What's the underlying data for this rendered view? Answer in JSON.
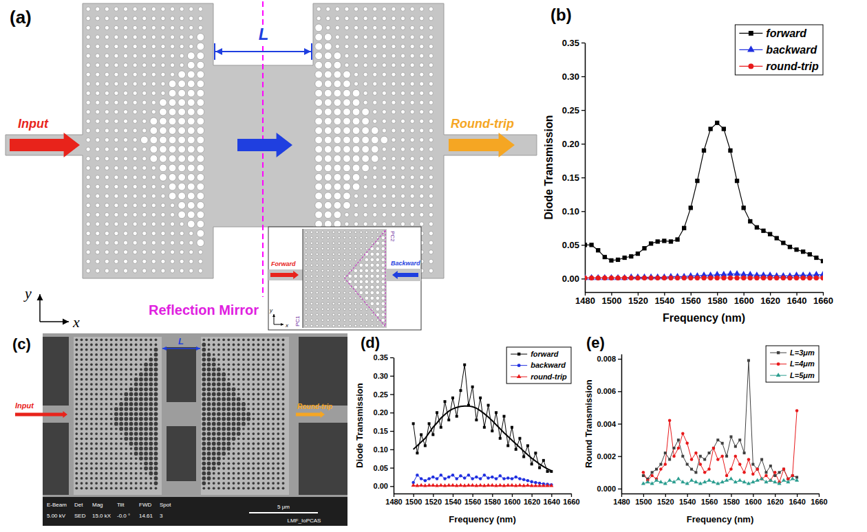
{
  "panel_a": {
    "label": "(a)",
    "L": "L",
    "input": "Input",
    "round_trip": "Round-trip",
    "mirror": "Reflection Mirror",
    "axis_y": "y",
    "axis_x": "x",
    "inset": {
      "forward": "Forward",
      "backward": "Backward",
      "pc1": "PC1",
      "pc2": "PC2",
      "axis_y": "y",
      "axis_x": "x"
    }
  },
  "panel_c": {
    "label": "(c)",
    "input": "Input",
    "round_trip": "Round-trip",
    "L": "L",
    "info_heads": [
      "E-Beam",
      "Det",
      "Mag",
      "Tilt",
      "FWD",
      "Spot"
    ],
    "info_values": [
      "5.00 kV",
      "SED",
      "15.0 kX",
      "-0.0 °",
      "14.61",
      "3"
    ],
    "scale": "5 μm",
    "lab": "LMF_IoPCAS"
  },
  "chart_data": [
    {
      "type": "line",
      "title": "(b)",
      "x_label": "Frequency (nm)",
      "y_label": "Diode Transmission",
      "x": [
        1480,
        1485,
        1490,
        1495,
        1500,
        1505,
        1510,
        1515,
        1520,
        1525,
        1530,
        1535,
        1540,
        1545,
        1550,
        1555,
        1560,
        1565,
        1570,
        1575,
        1580,
        1585,
        1590,
        1595,
        1600,
        1605,
        1610,
        1615,
        1620,
        1625,
        1630,
        1635,
        1640,
        1645,
        1650,
        1655,
        1660
      ],
      "xlim": [
        1480,
        1660
      ],
      "xticks": [
        1480,
        1500,
        1520,
        1540,
        1560,
        1580,
        1600,
        1620,
        1640,
        1660
      ],
      "ylim": [
        -0.02,
        0.35
      ],
      "yticks": [
        {
          "value": 0,
          "label": "0.00"
        },
        {
          "value": 0.05,
          "label": "0.05"
        },
        {
          "value": 0.1,
          "label": "0.10"
        },
        {
          "value": 0.15,
          "label": "0.15"
        },
        {
          "value": 0.2,
          "label": "0.20"
        },
        {
          "value": 0.25,
          "label": "0.25"
        },
        {
          "value": 0.3,
          "label": "0.30"
        },
        {
          "value": 0.35,
          "label": "0.35"
        }
      ],
      "legend": "top-right",
      "series": [
        {
          "name": "forward",
          "color": "#000000",
          "marker": "square",
          "values": [
            0.05,
            0.05,
            0.042,
            0.032,
            0.027,
            0.028,
            0.031,
            0.033,
            0.037,
            0.045,
            0.052,
            0.055,
            0.056,
            0.055,
            0.058,
            0.075,
            0.105,
            0.145,
            0.19,
            0.222,
            0.231,
            0.222,
            0.19,
            0.145,
            0.105,
            0.085,
            0.076,
            0.071,
            0.066,
            0.06,
            0.053,
            0.047,
            0.043,
            0.04,
            0.036,
            0.031,
            0.026
          ]
        },
        {
          "name": "backward",
          "color": "#1f2fe0",
          "marker": "triangle",
          "values": [
            0.001,
            0.001,
            0.001,
            0.001,
            0.001,
            0.001,
            0.001,
            0.002,
            0.002,
            0.002,
            0.002,
            0.002,
            0.002,
            0.003,
            0.003,
            0.003,
            0.004,
            0.004,
            0.005,
            0.005,
            0.006,
            0.006,
            0.007,
            0.007,
            0.006,
            0.006,
            0.005,
            0.005,
            0.005,
            0.004,
            0.004,
            0.004,
            0.005,
            0.005,
            0.005,
            0.006,
            0.006
          ]
        },
        {
          "name": "round-trip",
          "color": "#e8191b",
          "marker": "circle",
          "values": [
            0.001,
            0.001,
            0.001,
            0.001,
            0.001,
            0.001,
            0.001,
            0.001,
            0.001,
            0.001,
            0.001,
            0.001,
            0.001,
            0.001,
            0.001,
            0.001,
            0.001,
            0.001,
            0.001,
            0.001,
            0.001,
            0.001,
            0.001,
            0.001,
            0.001,
            0.001,
            0.001,
            0.001,
            0.001,
            0.001,
            0.001,
            0.001,
            0.001,
            0.001,
            0.001,
            0.001,
            0.001
          ]
        }
      ]
    },
    {
      "type": "line",
      "title": "(d)",
      "x_label": "Frequency (nm)",
      "y_label": "Diode Transmission",
      "x": [
        1500,
        1504,
        1508,
        1512,
        1516,
        1520,
        1524,
        1528,
        1532,
        1536,
        1540,
        1544,
        1548,
        1552,
        1556,
        1560,
        1564,
        1568,
        1572,
        1576,
        1580,
        1584,
        1588,
        1592,
        1596,
        1600,
        1604,
        1608,
        1612,
        1616,
        1620,
        1624,
        1628,
        1632,
        1636,
        1640
      ],
      "xlim": [
        1480,
        1660
      ],
      "xticks": [
        1480,
        1500,
        1520,
        1540,
        1560,
        1580,
        1600,
        1620,
        1640,
        1660
      ],
      "ylim": [
        -0.02,
        0.35
      ],
      "yticks": [
        {
          "value": 0,
          "label": "0.00"
        },
        {
          "value": 0.05,
          "label": "0.05"
        },
        {
          "value": 0.1,
          "label": "0.10"
        },
        {
          "value": 0.15,
          "label": "0.15"
        },
        {
          "value": 0.2,
          "label": "0.20"
        },
        {
          "value": 0.25,
          "label": "0.25"
        },
        {
          "value": 0.3,
          "label": "0.30"
        },
        {
          "value": 0.35,
          "label": "0.35"
        }
      ],
      "legend": "top-right",
      "series": [
        {
          "name": "forward",
          "color": "#000000",
          "marker": "square",
          "values": [
            0.17,
            0.09,
            0.14,
            0.11,
            0.17,
            0.14,
            0.2,
            0.16,
            0.23,
            0.18,
            0.24,
            0.19,
            0.26,
            0.33,
            0.22,
            0.27,
            0.18,
            0.24,
            0.16,
            0.22,
            0.15,
            0.2,
            0.13,
            0.19,
            0.11,
            0.16,
            0.1,
            0.13,
            0.08,
            0.11,
            0.06,
            0.09,
            0.05,
            0.07,
            0.04,
            0.04
          ],
          "fit": [
            0.1,
            0.11,
            0.12,
            0.13,
            0.145,
            0.16,
            0.172,
            0.185,
            0.195,
            0.204,
            0.21,
            0.214,
            0.217,
            0.218,
            0.218,
            0.216,
            0.212,
            0.205,
            0.197,
            0.188,
            0.178,
            0.167,
            0.156,
            0.145,
            0.135,
            0.125,
            0.115,
            0.105,
            0.095,
            0.085,
            0.076,
            0.068,
            0.06,
            0.053,
            0.047,
            0.042
          ]
        },
        {
          "name": "backward",
          "color": "#1f2fe0",
          "marker": "circle",
          "values": [
            0.01,
            0.03,
            0.02,
            0.015,
            0.02,
            0.025,
            0.02,
            0.03,
            0.02,
            0.025,
            0.03,
            0.02,
            0.028,
            0.022,
            0.03,
            0.02,
            0.025,
            0.02,
            0.03,
            0.022,
            0.025,
            0.02,
            0.028,
            0.02,
            0.022,
            0.02,
            0.025,
            0.02,
            0.018,
            0.015,
            0.012,
            0.01,
            0.008,
            0.006,
            0.005,
            0.004
          ]
        },
        {
          "name": "round-trip",
          "color": "#e8191b",
          "marker": "triangle",
          "values": [
            0.002,
            0.001,
            0.002,
            0.001,
            0.002,
            0.002,
            0.001,
            0.002,
            0.001,
            0.002,
            0.002,
            0.001,
            0.002,
            0.001,
            0.002,
            0.002,
            0.001,
            0.002,
            0.001,
            0.002,
            0.002,
            0.001,
            0.002,
            0.001,
            0.002,
            0.002,
            0.001,
            0.002,
            0.001,
            0.002,
            0.001,
            0.001,
            0.001,
            0.001,
            0.001,
            0.001
          ]
        }
      ]
    },
    {
      "type": "line",
      "title": "(e)",
      "x_label": "Frequency (nm)",
      "y_label": "Round Transmission",
      "x": [
        1500,
        1504,
        1508,
        1512,
        1516,
        1520,
        1524,
        1528,
        1532,
        1536,
        1540,
        1544,
        1548,
        1552,
        1556,
        1560,
        1564,
        1568,
        1572,
        1576,
        1580,
        1584,
        1588,
        1592,
        1596,
        1600,
        1604,
        1608,
        1612,
        1616,
        1620,
        1624,
        1628,
        1632,
        1636,
        1640
      ],
      "xlim": [
        1480,
        1660
      ],
      "xticks": [
        1480,
        1500,
        1520,
        1540,
        1560,
        1580,
        1600,
        1620,
        1640,
        1660
      ],
      "ylim": [
        -0.0003,
        0.0083
      ],
      "yticks": [
        {
          "value": 0,
          "label": "0.000"
        },
        {
          "value": 0.002,
          "label": "0.002"
        },
        {
          "value": 0.004,
          "label": "0.004"
        },
        {
          "value": 0.006,
          "label": "0.006"
        },
        {
          "value": 0.008,
          "label": "0.008"
        }
      ],
      "legend": "top-right",
      "series": [
        {
          "name": "L=3μm",
          "color": "#404040",
          "marker": "square",
          "values": [
            0.0008,
            0.0006,
            0.001,
            0.0012,
            0.0015,
            0.0022,
            0.0018,
            0.0025,
            0.003,
            0.002,
            0.0015,
            0.0012,
            0.001,
            0.002,
            0.0018,
            0.0022,
            0.0025,
            0.003,
            0.0028,
            0.002,
            0.0032,
            0.0026,
            0.003,
            0.0022,
            0.0079,
            0.0015,
            0.0012,
            0.0018,
            0.001,
            0.0014,
            0.0008,
            0.001,
            0.0012,
            0.0006,
            0.0008,
            0.0007
          ]
        },
        {
          "name": "L=4μm",
          "color": "#e8191b",
          "marker": "circle",
          "values": [
            0.001,
            0.0005,
            0.0008,
            0.0006,
            0.0012,
            0.0015,
            0.0042,
            0.002,
            0.0025,
            0.0034,
            0.0028,
            0.0018,
            0.0022,
            0.0015,
            0.001,
            0.0012,
            0.0025,
            0.0018,
            0.002,
            0.0008,
            0.0012,
            0.002,
            0.0015,
            0.001,
            0.0018,
            0.0009,
            0.0012,
            0.0006,
            0.0008,
            0.0005,
            0.001,
            0.0004,
            0.0012,
            0.0006,
            0.0008,
            0.0048
          ]
        },
        {
          "name": "L=5μm",
          "color": "#2a9d8f",
          "marker": "triangle",
          "values": [
            0.0003,
            0.0004,
            0.0003,
            0.0005,
            0.0004,
            0.0003,
            0.0005,
            0.0004,
            0.0006,
            0.0004,
            0.0003,
            0.0005,
            0.0004,
            0.0003,
            0.0004,
            0.0005,
            0.0004,
            0.0003,
            0.0004,
            0.0005,
            0.0006,
            0.0004,
            0.0005,
            0.0004,
            0.0003,
            0.0004,
            0.0005,
            0.0006,
            0.0004,
            0.0005,
            0.0004,
            0.0003,
            0.0005,
            0.0004,
            0.0006,
            0.0005
          ]
        }
      ]
    }
  ]
}
